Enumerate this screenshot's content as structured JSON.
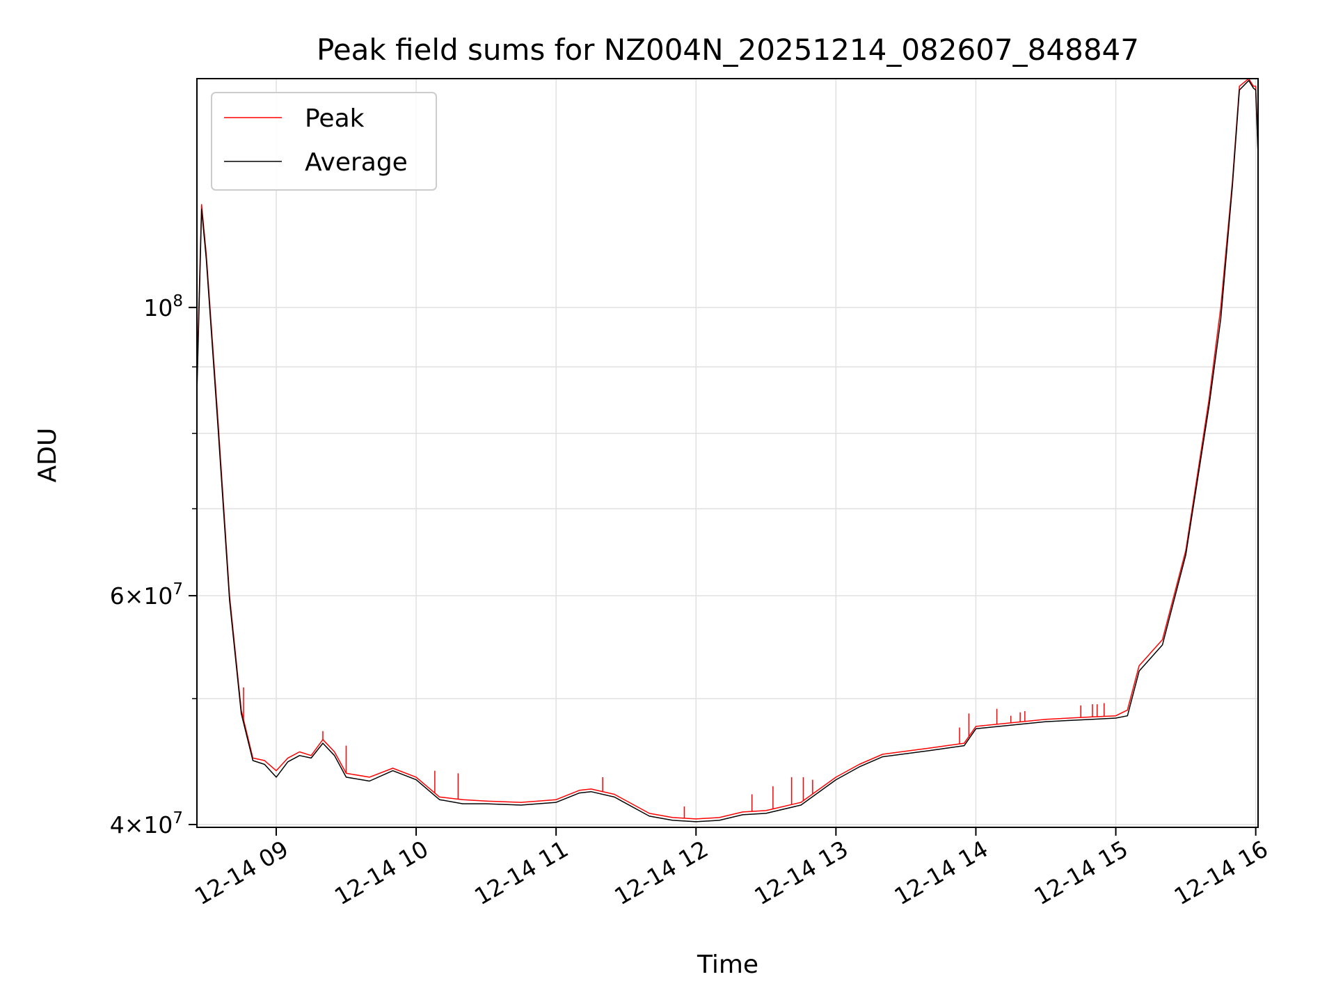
{
  "chart_data": {
    "type": "line",
    "title": "Peak field sums for NZ004N_20251214_082607_848847",
    "xlabel": "Time",
    "ylabel": "ADU",
    "y_scale": "log",
    "ylim": [
      39800000,
      150000000
    ],
    "xlim": [
      "2025-12-14 08:26",
      "2025-12-14 16:01"
    ],
    "grid": true,
    "legend": "top-left",
    "x_tick_labels": [
      "12-14 09",
      "12-14 10",
      "12-14 11",
      "12-14 12",
      "12-14 13",
      "12-14 14",
      "12-14 15",
      "12-14 16"
    ],
    "x_tick_times": [
      "2025-12-14 09:00",
      "2025-12-14 10:00",
      "2025-12-14 11:00",
      "2025-12-14 12:00",
      "2025-12-14 13:00",
      "2025-12-14 14:00",
      "2025-12-14 15:00",
      "2025-12-14 16:00"
    ],
    "y_tick_labels": [
      {
        "value": 40000000,
        "mant": "4",
        "exp": "7"
      },
      {
        "value": 60000000,
        "mant": "6",
        "exp": "7"
      },
      {
        "value": 100000000,
        "mant": "",
        "exp": "8"
      }
    ],
    "y_minor_ticks": [
      50000000,
      70000000,
      80000000,
      90000000
    ],
    "colors": {
      "peak": "#ff0000",
      "average": "#000000",
      "grid": "#e0e0e0"
    },
    "series": [
      {
        "name": "Peak",
        "color": "#ff0000",
        "x": [
          "2025-12-14 08:26",
          "2025-12-14 08:28",
          "2025-12-14 08:30",
          "2025-12-14 08:35",
          "2025-12-14 08:40",
          "2025-12-14 08:45",
          "2025-12-14 08:50",
          "2025-12-14 08:55",
          "2025-12-14 09:00",
          "2025-12-14 09:05",
          "2025-12-14 09:10",
          "2025-12-14 09:15",
          "2025-12-14 09:20",
          "2025-12-14 09:25",
          "2025-12-14 09:30",
          "2025-12-14 09:40",
          "2025-12-14 09:50",
          "2025-12-14 10:00",
          "2025-12-14 10:10",
          "2025-12-14 10:20",
          "2025-12-14 10:30",
          "2025-12-14 10:45",
          "2025-12-14 11:00",
          "2025-12-14 11:10",
          "2025-12-14 11:15",
          "2025-12-14 11:25",
          "2025-12-14 11:40",
          "2025-12-14 11:50",
          "2025-12-14 12:00",
          "2025-12-14 12:10",
          "2025-12-14 12:20",
          "2025-12-14 12:30",
          "2025-12-14 12:45",
          "2025-12-14 13:00",
          "2025-12-14 13:10",
          "2025-12-14 13:20",
          "2025-12-14 13:40",
          "2025-12-14 13:55",
          "2025-12-14 14:00",
          "2025-12-14 14:10",
          "2025-12-14 14:30",
          "2025-12-14 14:50",
          "2025-12-14 15:00",
          "2025-12-14 15:05",
          "2025-12-14 15:10",
          "2025-12-14 15:20",
          "2025-12-14 15:30",
          "2025-12-14 15:40",
          "2025-12-14 15:45",
          "2025-12-14 15:50",
          "2025-12-14 15:53",
          "2025-12-14 15:57",
          "2025-12-14 15:59",
          "2025-12-14 16:00",
          "2025-12-14 16:01"
        ],
        "y": [
          88000000,
          120000000,
          110000000,
          82000000,
          60000000,
          49000000,
          45000000,
          44800000,
          44000000,
          45000000,
          45500000,
          45200000,
          46500000,
          45500000,
          43800000,
          43500000,
          44200000,
          43500000,
          42000000,
          41800000,
          41700000,
          41600000,
          41800000,
          42500000,
          42600000,
          42200000,
          40800000,
          40500000,
          40400000,
          40500000,
          40900000,
          41000000,
          41600000,
          43500000,
          44500000,
          45300000,
          45800000,
          46200000,
          47600000,
          47800000,
          48200000,
          48400000,
          48500000,
          49000000,
          53000000,
          55500000,
          65000000,
          85000000,
          100000000,
          125000000,
          148000000,
          150000000,
          148000000,
          148000000,
          132000000
        ],
        "spikes": [
          {
            "x": "2025-12-14 08:46",
            "y": 51000000
          },
          {
            "x": "2025-12-14 09:20",
            "y": 47200000
          },
          {
            "x": "2025-12-14 09:30",
            "y": 46000000
          },
          {
            "x": "2025-12-14 10:08",
            "y": 44000000
          },
          {
            "x": "2025-12-14 10:18",
            "y": 43800000
          },
          {
            "x": "2025-12-14 11:20",
            "y": 43500000
          },
          {
            "x": "2025-12-14 11:55",
            "y": 41300000
          },
          {
            "x": "2025-12-14 12:24",
            "y": 42200000
          },
          {
            "x": "2025-12-14 12:33",
            "y": 42800000
          },
          {
            "x": "2025-12-14 12:41",
            "y": 43500000
          },
          {
            "x": "2025-12-14 12:46",
            "y": 43500000
          },
          {
            "x": "2025-12-14 12:50",
            "y": 43300000
          },
          {
            "x": "2025-12-14 13:53",
            "y": 47500000
          },
          {
            "x": "2025-12-14 13:57",
            "y": 48700000
          },
          {
            "x": "2025-12-14 14:09",
            "y": 49100000
          },
          {
            "x": "2025-12-14 14:15",
            "y": 48500000
          },
          {
            "x": "2025-12-14 14:19",
            "y": 48800000
          },
          {
            "x": "2025-12-14 14:21",
            "y": 48900000
          },
          {
            "x": "2025-12-14 14:45",
            "y": 49400000
          },
          {
            "x": "2025-12-14 14:50",
            "y": 49500000
          },
          {
            "x": "2025-12-14 14:52",
            "y": 49500000
          },
          {
            "x": "2025-12-14 14:55",
            "y": 49600000
          }
        ]
      },
      {
        "name": "Average",
        "color": "#000000",
        "x": [
          "2025-12-14 08:26",
          "2025-12-14 08:28",
          "2025-12-14 08:30",
          "2025-12-14 08:35",
          "2025-12-14 08:40",
          "2025-12-14 08:45",
          "2025-12-14 08:50",
          "2025-12-14 08:55",
          "2025-12-14 09:00",
          "2025-12-14 09:05",
          "2025-12-14 09:10",
          "2025-12-14 09:15",
          "2025-12-14 09:20",
          "2025-12-14 09:25",
          "2025-12-14 09:30",
          "2025-12-14 09:40",
          "2025-12-14 09:50",
          "2025-12-14 10:00",
          "2025-12-14 10:10",
          "2025-12-14 10:20",
          "2025-12-14 10:30",
          "2025-12-14 10:45",
          "2025-12-14 11:00",
          "2025-12-14 11:10",
          "2025-12-14 11:15",
          "2025-12-14 11:25",
          "2025-12-14 11:40",
          "2025-12-14 11:50",
          "2025-12-14 12:00",
          "2025-12-14 12:10",
          "2025-12-14 12:20",
          "2025-12-14 12:30",
          "2025-12-14 12:45",
          "2025-12-14 13:00",
          "2025-12-14 13:10",
          "2025-12-14 13:20",
          "2025-12-14 13:40",
          "2025-12-14 13:55",
          "2025-12-14 14:00",
          "2025-12-14 14:10",
          "2025-12-14 14:30",
          "2025-12-14 14:50",
          "2025-12-14 15:00",
          "2025-12-14 15:05",
          "2025-12-14 15:10",
          "2025-12-14 15:20",
          "2025-12-14 15:30",
          "2025-12-14 15:40",
          "2025-12-14 15:45",
          "2025-12-14 15:50",
          "2025-12-14 15:53",
          "2025-12-14 15:57",
          "2025-12-14 15:59",
          "2025-12-14 16:00",
          "2025-12-14 16:01"
        ],
        "y": [
          86000000,
          119000000,
          109000000,
          81000000,
          59500000,
          48700000,
          44800000,
          44500000,
          43500000,
          44700000,
          45200000,
          45000000,
          46200000,
          45200000,
          43500000,
          43200000,
          44000000,
          43300000,
          41800000,
          41500000,
          41500000,
          41400000,
          41600000,
          42300000,
          42400000,
          42000000,
          40600000,
          40300000,
          40200000,
          40300000,
          40700000,
          40800000,
          41400000,
          43300000,
          44300000,
          45100000,
          45600000,
          46000000,
          47400000,
          47600000,
          48000000,
          48200000,
          48300000,
          48500000,
          52500000,
          55000000,
          64500000,
          84000000,
          98000000,
          124000000,
          147000000,
          149500000,
          147500000,
          147000000,
          131000000
        ]
      }
    ]
  }
}
